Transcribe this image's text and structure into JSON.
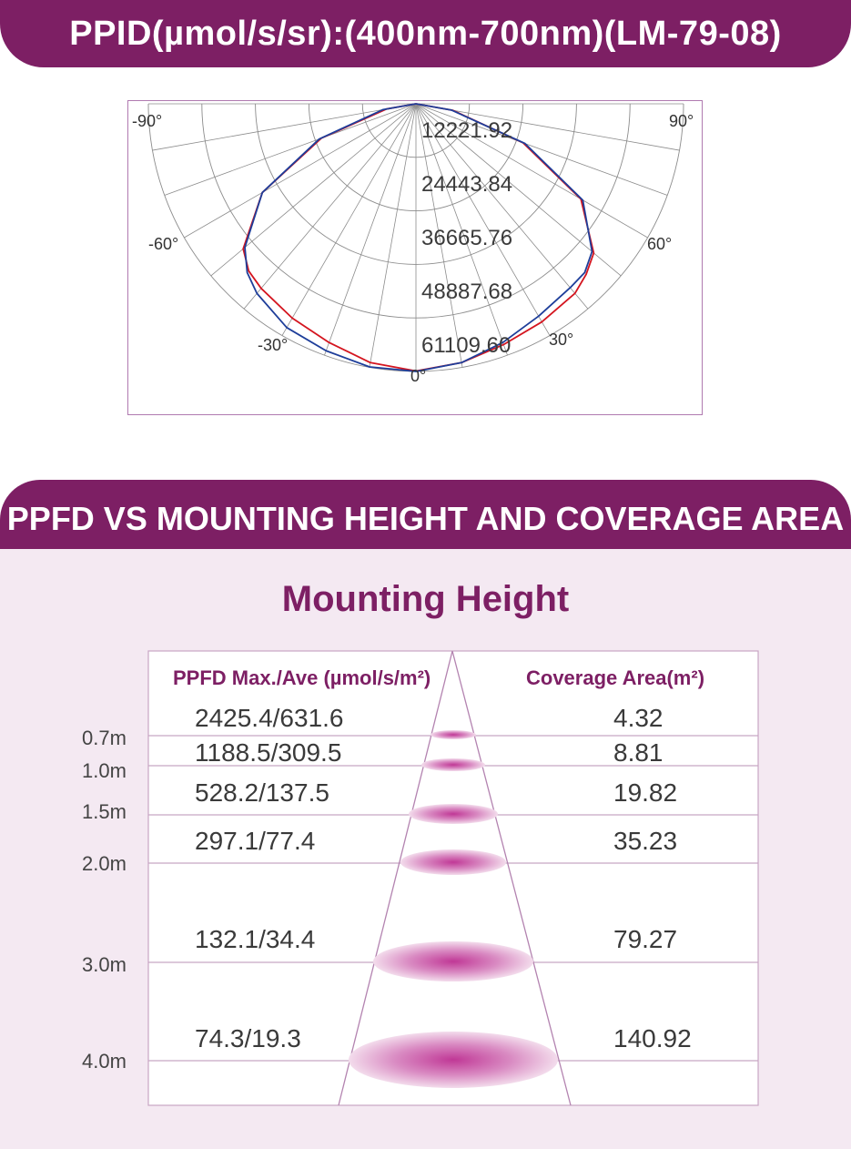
{
  "header": {
    "polar_title": "PPID(µmol/s/sr):(400nm-700nm)(LM-79-08)"
  },
  "polar_chart": {
    "angle_labels": {
      "neg90": "-90°",
      "pos90": "90°",
      "neg60": "-60°",
      "pos60": "60°",
      "neg30": "-30°",
      "pos30": "30°",
      "zero": "0°"
    },
    "radial_labels": [
      "12221.92",
      "24443.84",
      "36665.76",
      "48887.68",
      "61109.60"
    ],
    "colors": {
      "series_a": "#d4151f",
      "series_b": "#1e3e9a",
      "grid": "#8c8c8c"
    }
  },
  "section2": {
    "title": "PPFD VS MOUNTING HEIGHT AND COVERAGE AREA",
    "subtitle": "Mounting Height",
    "col_ppfd": "PPFD Max./Ave (µmol/s/m²)",
    "col_area": "Coverage Area(m²)"
  },
  "chart_data": [
    {
      "type": "polar",
      "title": "PPID(µmol/s/sr):(400nm-700nm)(LM-79-08)",
      "angle_range": [
        -90,
        90
      ],
      "angle_ticks": [
        "-90°",
        "-60°",
        "-30°",
        "0°",
        "30°",
        "60°",
        "90°"
      ],
      "radial_ticks": [
        12221.92,
        24443.84,
        36665.76,
        48887.68,
        61109.6
      ],
      "rmax": 61109.6,
      "series": [
        {
          "color": "#d4151f",
          "angles": [
            -90,
            -80,
            -70,
            -60,
            -50,
            -45,
            -40,
            -30,
            -20,
            -10,
            0,
            10,
            20,
            30,
            40,
            45,
            50,
            60,
            70,
            80,
            90
          ],
          "values": [
            0,
            6800,
            23000,
            40500,
            51500,
            54000,
            55000,
            56500,
            58000,
            60000,
            61000,
            60000,
            58500,
            57500,
            56500,
            55000,
            53000,
            43500,
            26000,
            8500,
            0
          ]
        },
        {
          "color": "#1e3e9a",
          "angles": [
            -90,
            -80,
            -70,
            -60,
            -50,
            -45,
            -40,
            -30,
            -20,
            -10,
            0,
            10,
            20,
            30,
            40,
            45,
            50,
            60,
            70,
            80,
            90
          ],
          "values": [
            0,
            7600,
            23500,
            40500,
            51000,
            54500,
            56500,
            59000,
            60000,
            61000,
            61100,
            60000,
            58000,
            56000,
            54800,
            54500,
            52500,
            44000,
            26500,
            8200,
            0
          ]
        }
      ]
    },
    {
      "type": "table",
      "title": "Mounting Height",
      "columns": [
        "Height",
        "PPFD Max./Ave (µmol/s/m²)",
        "Coverage Area(m²)"
      ],
      "rows": [
        {
          "height": "0.7m",
          "ppfd": "2425.4/631.6",
          "area": "4.32"
        },
        {
          "height": "1.0m",
          "ppfd": "1188.5/309.5",
          "area": "8.81"
        },
        {
          "height": "1.5m",
          "ppfd": "528.2/137.5",
          "area": "19.82"
        },
        {
          "height": "2.0m",
          "ppfd": "297.1/77.4",
          "area": "35.23"
        },
        {
          "height": "3.0m",
          "ppfd": "132.1/34.4",
          "area": "79.27"
        },
        {
          "height": "4.0m",
          "ppfd": "74.3/19.3",
          "area": "140.92"
        }
      ]
    }
  ]
}
